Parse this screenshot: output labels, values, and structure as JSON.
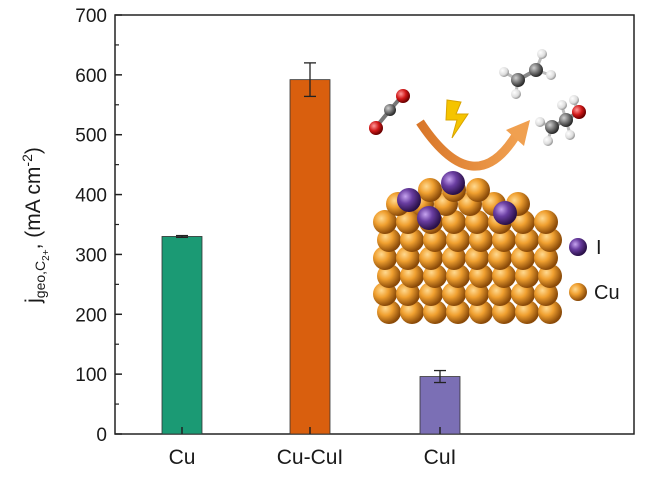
{
  "chart_data": {
    "type": "bar",
    "categories": [
      "Cu",
      "Cu-CuI",
      "CuI"
    ],
    "values": [
      330,
      592,
      96
    ],
    "errors": [
      1.5,
      28,
      10
    ],
    "colors": [
      "#1b9a74",
      "#d95f0e",
      "#7b6fb5"
    ],
    "ylim": [
      0,
      700
    ],
    "yticks": [
      0,
      100,
      200,
      300,
      400,
      500,
      600,
      700
    ],
    "ylabel": {
      "main": "j",
      "sub": "geo,C",
      "subsub": "2+",
      "tail": ", (mA cm",
      "sup": "-2",
      "close": ")"
    },
    "grid": false,
    "legend": {
      "items": [
        {
          "label": "I",
          "color": "#6a3ea1",
          "icon": "iodine-atom-icon"
        },
        {
          "label": "Cu",
          "color": "#e0902a",
          "icon": "copper-atom-icon"
        }
      ]
    },
    "illustration": {
      "description_icons": [
        "co2-molecule-icon",
        "lightning-icon",
        "ethylene-molecule-icon",
        "ethanol-molecule-icon",
        "copper-slab-icon"
      ]
    }
  }
}
